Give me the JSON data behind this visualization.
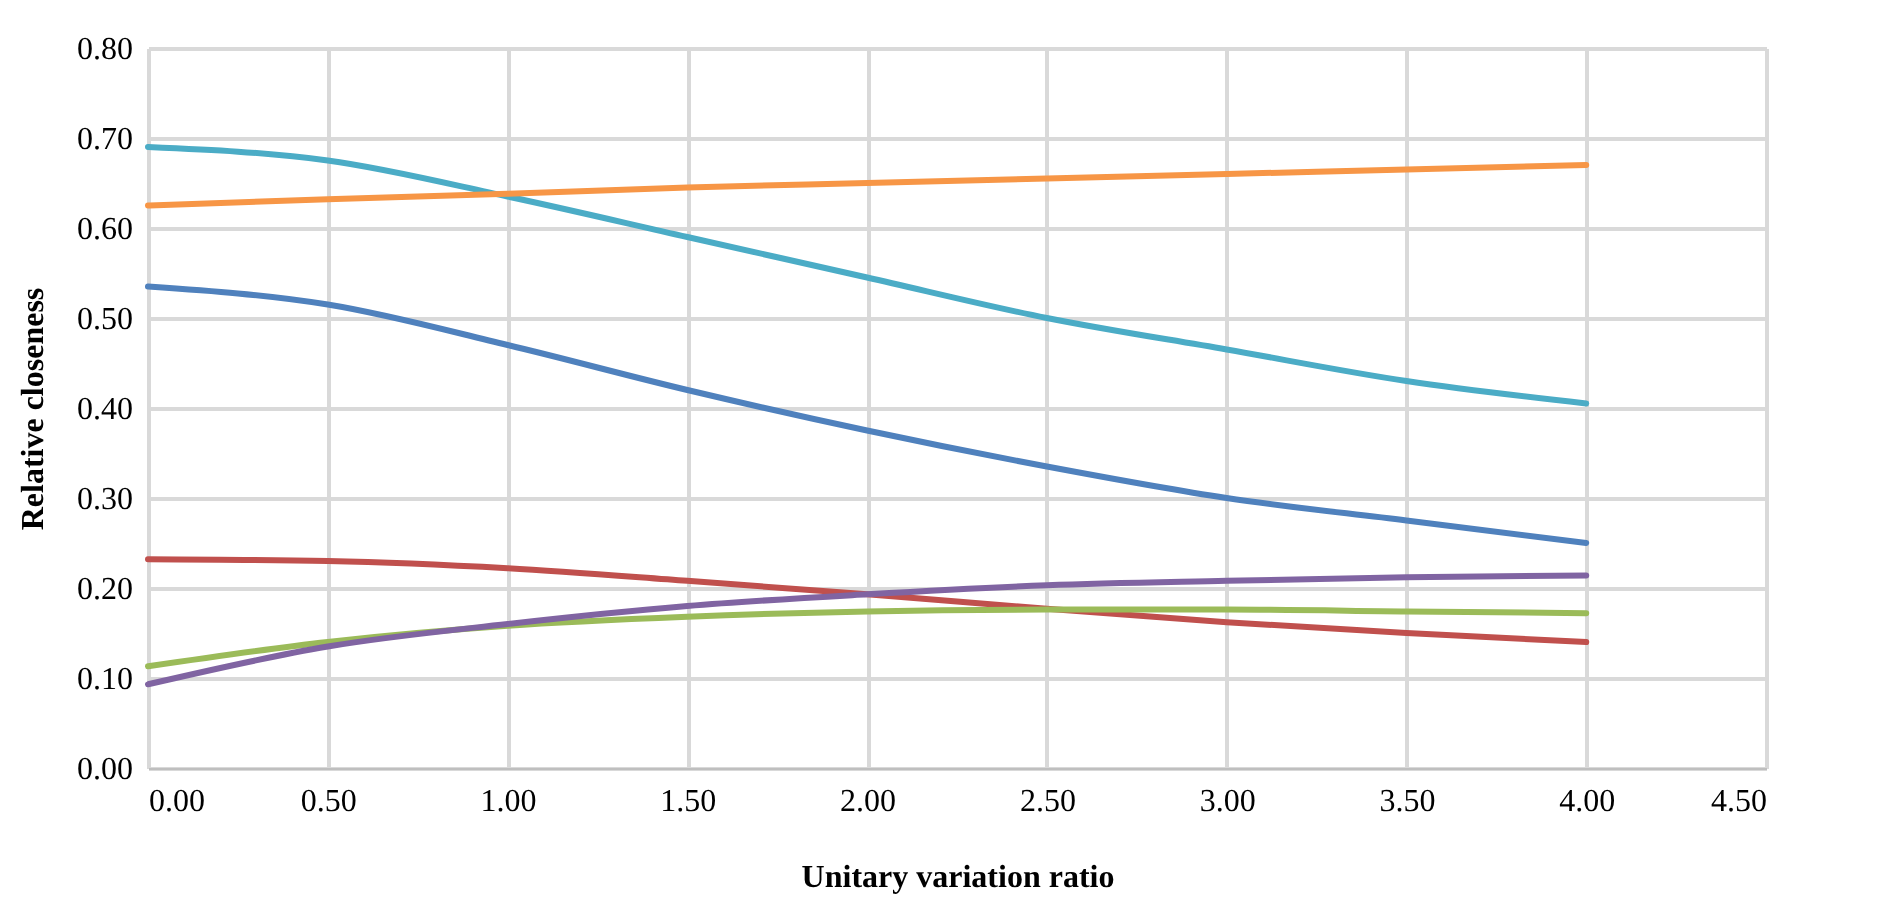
{
  "chart_data": {
    "type": "line",
    "xlabel": "Unitary variation ratio",
    "ylabel": "Relative closeness",
    "x": [
      0,
      0.5,
      1,
      1.5,
      2,
      2.5,
      3,
      3.5,
      4
    ],
    "series": [
      {
        "color": "#4f81bd",
        "values": [
          0.535,
          0.515,
          0.47,
          0.42,
          0.375,
          0.335,
          0.3,
          0.275,
          0.25
        ]
      },
      {
        "color": "#c0504d",
        "values": [
          0.232,
          0.23,
          0.222,
          0.208,
          0.193,
          0.177,
          0.162,
          0.15,
          0.14
        ]
      },
      {
        "color": "#9bbb59",
        "values": [
          0.113,
          0.14,
          0.158,
          0.168,
          0.174,
          0.176,
          0.176,
          0.174,
          0.172
        ]
      },
      {
        "color": "#8064a2",
        "values": [
          0.093,
          0.135,
          0.16,
          0.18,
          0.193,
          0.203,
          0.208,
          0.212,
          0.214
        ]
      },
      {
        "color": "#4bacc6",
        "values": [
          0.69,
          0.675,
          0.635,
          0.59,
          0.545,
          0.5,
          0.465,
          0.43,
          0.405
        ]
      },
      {
        "color": "#f79646",
        "values": [
          0.625,
          0.632,
          0.638,
          0.645,
          0.65,
          0.655,
          0.66,
          0.665,
          0.67
        ]
      }
    ],
    "xlim": [
      0,
      4.5
    ],
    "xticks": [
      {
        "value": 0,
        "label": "0.00"
      },
      {
        "value": 0.5,
        "label": "0.50"
      },
      {
        "value": 1,
        "label": "1.00"
      },
      {
        "value": 1.5,
        "label": "1.50"
      },
      {
        "value": 2,
        "label": "2.00"
      },
      {
        "value": 2.5,
        "label": "2.50"
      },
      {
        "value": 3,
        "label": "3.00"
      },
      {
        "value": 3.5,
        "label": "3.50"
      },
      {
        "value": 4,
        "label": "4.00"
      },
      {
        "value": 4.5,
        "label": "4.50"
      }
    ],
    "ylim": [
      0,
      0.8
    ],
    "yticks": [
      {
        "value": 0,
        "label": "0.00"
      },
      {
        "value": 0.1,
        "label": "0.10"
      },
      {
        "value": 0.2,
        "label": "0.20"
      },
      {
        "value": 0.3,
        "label": "0.30"
      },
      {
        "value": 0.4,
        "label": "0.40"
      },
      {
        "value": 0.5,
        "label": "0.50"
      },
      {
        "value": 0.6,
        "label": "0.60"
      },
      {
        "value": 0.7,
        "label": "0.70"
      },
      {
        "value": 0.8,
        "label": "0.80"
      }
    ],
    "grid": true,
    "line_style": "solid",
    "marker": "none"
  }
}
